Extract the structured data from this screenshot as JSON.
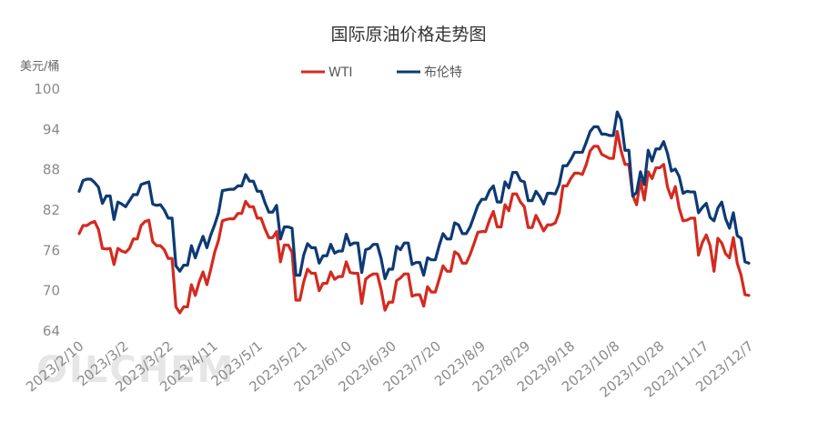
{
  "watermark": "OILCHEM",
  "chart_data": {
    "type": "line",
    "title": "国际原油价格走势图",
    "ylabel": "美元/桶",
    "xlabel": "",
    "ylim": [
      64,
      100
    ],
    "yticks": [
      64,
      70,
      76,
      82,
      88,
      94,
      100
    ],
    "xticks": [
      "2023/2/10",
      "2023/3/2",
      "2023/3/22",
      "2023/4/11",
      "2023/5/1",
      "2023/5/21",
      "2023/6/10",
      "2023/6/30",
      "2023/7/20",
      "2023/8/9",
      "2023/8/29",
      "2023/9/18",
      "2023/10/8",
      "2023/10/28",
      "2023/11/17",
      "2023/12/7"
    ],
    "x_start": "2023/2/10",
    "x_end": "2023/12/7",
    "legend_position": "top-center",
    "grid": false,
    "series": [
      {
        "name": "WTI",
        "color": "#d42a20",
        "x": [
          "2023/2/10",
          "2023/2/13",
          "2023/2/15",
          "2023/2/17",
          "2023/2/20",
          "2023/2/22",
          "2023/2/24",
          "2023/2/27",
          "2023/3/1",
          "2023/3/3",
          "2023/3/6",
          "2023/3/8",
          "2023/3/10",
          "2023/3/13",
          "2023/3/15",
          "2023/3/17",
          "2023/3/20",
          "2023/3/22",
          "2023/3/24",
          "2023/3/27",
          "2023/3/29",
          "2023/3/31",
          "2023/4/3",
          "2023/4/5",
          "2023/4/7",
          "2023/4/10",
          "2023/4/12",
          "2023/4/14",
          "2023/4/17",
          "2023/4/19",
          "2023/4/21",
          "2023/4/24",
          "2023/4/26",
          "2023/4/28",
          "2023/5/1",
          "2023/5/3",
          "2023/5/5",
          "2023/5/8",
          "2023/5/10",
          "2023/5/12",
          "2023/5/15",
          "2023/5/17",
          "2023/5/19",
          "2023/5/22",
          "2023/5/24",
          "2023/5/26",
          "2023/5/29",
          "2023/5/31",
          "2023/6/2",
          "2023/6/5",
          "2023/6/7",
          "2023/6/9",
          "2023/6/12",
          "2023/6/14",
          "2023/6/16",
          "2023/6/19",
          "2023/6/21",
          "2023/6/23",
          "2023/6/26",
          "2023/6/28",
          "2023/6/30",
          "2023/7/3",
          "2023/7/5",
          "2023/7/7",
          "2023/7/10",
          "2023/7/12",
          "2023/7/14",
          "2023/7/17",
          "2023/7/19",
          "2023/7/21",
          "2023/7/24",
          "2023/7/26",
          "2023/7/28",
          "2023/7/31",
          "2023/8/2",
          "2023/8/4",
          "2023/8/7",
          "2023/8/9",
          "2023/8/11",
          "2023/8/14",
          "2023/8/16",
          "2023/8/18",
          "2023/8/21",
          "2023/8/23",
          "2023/8/25",
          "2023/8/28",
          "2023/8/30",
          "2023/9/1",
          "2023/9/4",
          "2023/9/6",
          "2023/9/8",
          "2023/9/11",
          "2023/9/13",
          "2023/9/15",
          "2023/9/18",
          "2023/9/20",
          "2023/9/22",
          "2023/9/25",
          "2023/9/27",
          "2023/9/29",
          "2023/10/2",
          "2023/10/4",
          "2023/10/6",
          "2023/10/9",
          "2023/10/11",
          "2023/10/13",
          "2023/10/16",
          "2023/10/18",
          "2023/10/20",
          "2023/10/23",
          "2023/10/25",
          "2023/10/27",
          "2023/10/30",
          "2023/11/1",
          "2023/11/3",
          "2023/11/6",
          "2023/11/8",
          "2023/11/10",
          "2023/11/13",
          "2023/11/15",
          "2023/11/17",
          "2023/11/20",
          "2023/11/22",
          "2023/11/24",
          "2023/11/27",
          "2023/11/29",
          "2023/12/1",
          "2023/12/4",
          "2023/12/6",
          "2023/12/7"
        ],
        "y": [
          78.5,
          79.7,
          79.1,
          76.3,
          76.2,
          73.9,
          76.3,
          75.7,
          77.7,
          79.7,
          80.5,
          76.7,
          76.7,
          74.8,
          67.6,
          66.7,
          67.6,
          70.9,
          69.3,
          72.8,
          73.2,
          75.7,
          80.4,
          80.6,
          80.7,
          81.5,
          83.3,
          82.5,
          80.8,
          79.2,
          77.9,
          78.8,
          74.3,
          76.8,
          75.7,
          68.6,
          71.3,
          73.2,
          72.6,
          70.0,
          71.1,
          72.8,
          71.7,
          72.1,
          74.3,
          72.7,
          72.6,
          68.1,
          71.7,
          72.2,
          72.5,
          70.2,
          67.1,
          68.3,
          71.5,
          71.9,
          72.5,
          69.2,
          69.4,
          67.7,
          70.6,
          69.8,
          71.7,
          73.7,
          72.9,
          75.8,
          75.4,
          74.1,
          75.4,
          77.0,
          78.7,
          78.8,
          80.5,
          81.8,
          79.5,
          82.8,
          81.9,
          84.4,
          83.2,
          82.5,
          79.4,
          81.2,
          80.1,
          78.9,
          79.8,
          80.1,
          81.6,
          85.6,
          86.7,
          87.5,
          87.5,
          87.3,
          88.8,
          90.8,
          91.5,
          90.3,
          90.0,
          89.7,
          93.7,
          90.8,
          88.8,
          84.2,
          82.8,
          86.4,
          83.5,
          87.7,
          86.7,
          88.3,
          88.8,
          85.4,
          83.8,
          85.5,
          82.3,
          80.4,
          80.5,
          80.8,
          75.3,
          77.2,
          78.3,
          76.7,
          75.9,
          77.8,
          77.1,
          75.5,
          74.9,
          77.9,
          74.1,
          72.3,
          69.4,
          69.3
        ],
        "draw": [
          78.5,
          79.7,
          79.7,
          80.1,
          80.3,
          79.1,
          76.3,
          76.2,
          76.3,
          73.9,
          76.3,
          75.9,
          75.7,
          76.3,
          77.7,
          77.7,
          79.7,
          80.3,
          80.5,
          77.3,
          76.7,
          76.7,
          76.1,
          74.8,
          74.8,
          67.6,
          66.7,
          67.6,
          67.6,
          70.9,
          69.3,
          71.3,
          72.8,
          70.9,
          73.2,
          75.7,
          77.5,
          80.4,
          80.6,
          80.7,
          80.7,
          81.5,
          81.5,
          83.3,
          82.5,
          82.5,
          80.8,
          80.8,
          79.2,
          77.9,
          77.9,
          78.8,
          74.3,
          76.8,
          76.8,
          75.7,
          68.6,
          68.6,
          71.3,
          73.2,
          72.6,
          72.6,
          70.0,
          71.1,
          71.1,
          72.8,
          71.7,
          72.1,
          72.1,
          74.3,
          72.7,
          72.6,
          72.6,
          68.1,
          71.7,
          72.2,
          72.5,
          72.5,
          70.2,
          67.1,
          68.3,
          68.3,
          71.5,
          71.9,
          72.5,
          72.5,
          69.2,
          69.4,
          69.4,
          67.7,
          70.6,
          69.8,
          69.8,
          71.7,
          73.7,
          72.9,
          72.9,
          75.8,
          75.4,
          74.1,
          74.1,
          75.4,
          77.0,
          78.7,
          78.8,
          78.8,
          80.5,
          81.8,
          79.5,
          79.5,
          82.8,
          81.9,
          84.4,
          84.4,
          83.2,
          82.5,
          79.4,
          79.4,
          81.2,
          80.1,
          78.9,
          79.8,
          79.8,
          80.1,
          81.6,
          85.6,
          85.6,
          86.7,
          87.5,
          87.5,
          87.3,
          88.8,
          90.8,
          91.5,
          91.5,
          90.3,
          90.0,
          89.7,
          89.7,
          93.7,
          90.8,
          88.8,
          88.8,
          84.2,
          82.8,
          86.4,
          83.5,
          87.7,
          86.7,
          88.3,
          88.3,
          88.8,
          85.4,
          83.8,
          85.5,
          82.3,
          80.4,
          80.5,
          80.8,
          80.8,
          75.3,
          77.2,
          78.3,
          76.7,
          72.9,
          77.8,
          77.1,
          75.5,
          74.9,
          77.9,
          74.1,
          72.3,
          69.4,
          69.3
        ]
      },
      {
        "name": "布伦特",
        "color": "#0d3a75",
        "x": [
          "2023/2/10",
          "2023/2/13",
          "2023/2/15",
          "2023/2/17",
          "2023/2/20",
          "2023/2/22",
          "2023/2/24",
          "2023/2/27",
          "2023/3/1",
          "2023/3/3",
          "2023/3/6",
          "2023/3/8",
          "2023/3/10",
          "2023/3/13",
          "2023/3/15",
          "2023/3/17",
          "2023/3/20",
          "2023/3/22",
          "2023/3/24",
          "2023/3/27",
          "2023/3/29",
          "2023/3/31",
          "2023/4/3",
          "2023/4/5",
          "2023/4/7",
          "2023/4/10",
          "2023/4/12",
          "2023/4/14",
          "2023/4/17",
          "2023/4/19",
          "2023/4/21",
          "2023/4/24",
          "2023/4/26",
          "2023/4/28",
          "2023/5/1",
          "2023/5/3",
          "2023/5/5",
          "2023/5/8",
          "2023/5/10",
          "2023/5/12",
          "2023/5/15",
          "2023/5/17",
          "2023/5/19",
          "2023/5/22",
          "2023/5/24",
          "2023/5/26",
          "2023/5/29",
          "2023/5/31",
          "2023/6/2",
          "2023/6/5",
          "2023/6/7",
          "2023/6/9",
          "2023/6/12",
          "2023/6/14",
          "2023/6/16",
          "2023/6/19",
          "2023/6/21",
          "2023/6/23",
          "2023/6/26",
          "2023/6/28",
          "2023/6/30",
          "2023/7/3",
          "2023/7/5",
          "2023/7/7",
          "2023/7/10",
          "2023/7/12",
          "2023/7/14",
          "2023/7/17",
          "2023/7/19",
          "2023/7/21",
          "2023/7/24",
          "2023/7/26",
          "2023/7/28",
          "2023/7/31",
          "2023/8/2",
          "2023/8/4",
          "2023/8/7",
          "2023/8/9",
          "2023/8/11",
          "2023/8/14",
          "2023/8/16",
          "2023/8/18",
          "2023/8/21",
          "2023/8/23",
          "2023/8/25",
          "2023/8/28",
          "2023/8/30",
          "2023/9/1",
          "2023/9/4",
          "2023/9/6",
          "2023/9/8",
          "2023/9/11",
          "2023/9/13",
          "2023/9/15",
          "2023/9/18",
          "2023/9/20",
          "2023/9/22",
          "2023/9/25",
          "2023/9/27",
          "2023/9/29",
          "2023/10/2",
          "2023/10/4",
          "2023/10/6",
          "2023/10/9",
          "2023/10/11",
          "2023/10/13",
          "2023/10/16",
          "2023/10/18",
          "2023/10/20",
          "2023/10/23",
          "2023/10/25",
          "2023/10/27",
          "2023/10/30",
          "2023/11/1",
          "2023/11/3",
          "2023/11/6",
          "2023/11/8",
          "2023/11/10",
          "2023/11/13",
          "2023/11/15",
          "2023/11/17",
          "2023/11/20",
          "2023/11/22",
          "2023/11/24",
          "2023/11/27",
          "2023/11/29",
          "2023/12/1",
          "2023/12/4",
          "2023/12/6",
          "2023/12/7"
        ],
        "y": [
          86.4,
          86.6,
          85.4,
          83.0,
          84.1,
          80.6,
          83.2,
          82.5,
          84.3,
          85.8,
          86.2,
          82.7,
          82.8,
          80.8,
          73.7,
          72.9,
          73.8,
          76.7,
          74.9,
          78.1,
          78.3,
          79.8,
          84.9,
          85.0,
          85.1,
          85.6,
          87.3,
          86.3,
          84.8,
          83.1,
          81.7,
          82.7,
          77.7,
          79.5,
          79.3,
          72.3,
          75.3,
          77.0,
          76.4,
          74.1,
          75.2,
          76.9,
          75.6,
          75.9,
          78.4,
          76.8,
          77.1,
          72.7,
          76.1,
          76.3,
          76.9,
          74.8,
          71.8,
          73.2,
          76.6,
          76.1,
          77.1,
          73.9,
          74.2,
          72.3,
          74.9,
          74.6,
          76.7,
          78.5,
          77.7,
          80.1,
          79.8,
          78.5,
          79.5,
          81.1,
          82.7,
          83.6,
          84.9,
          85.6,
          83.2,
          86.2,
          85.3,
          87.6,
          86.4,
          86.2,
          83.4,
          84.8,
          84.0,
          82.9,
          84.5,
          84.4,
          85.8,
          88.6,
          89.5,
          90.6,
          90.6,
          90.6,
          92.1,
          93.7,
          94.4,
          93.3,
          93.3,
          93.1,
          96.6,
          95.4,
          90.9,
          84.1,
          84.6,
          87.7,
          85.8,
          90.9,
          89.3,
          91.1,
          92.2,
          90.4,
          87.8,
          88.1,
          87.0,
          84.5,
          84.8,
          84.7,
          81.6,
          82.4,
          83.0,
          80.9,
          80.4,
          82.3,
          83.2,
          80.7,
          79.3,
          81.6,
          78.2,
          77.8,
          74.3,
          74.1
        ],
        "draw": [
          84.8,
          86.4,
          86.6,
          86.6,
          86.1,
          85.4,
          83.0,
          84.1,
          84.1,
          80.6,
          83.2,
          82.9,
          82.5,
          83.4,
          84.3,
          84.3,
          85.8,
          86.0,
          86.2,
          82.9,
          82.7,
          82.8,
          82.0,
          80.8,
          80.8,
          73.7,
          72.9,
          73.8,
          73.8,
          76.7,
          74.9,
          76.6,
          78.1,
          76.4,
          78.3,
          79.8,
          81.6,
          84.9,
          85.0,
          85.1,
          85.1,
          85.6,
          85.6,
          87.3,
          86.3,
          86.3,
          84.8,
          84.8,
          83.1,
          81.7,
          81.7,
          82.7,
          77.7,
          79.5,
          79.5,
          79.3,
          72.3,
          72.3,
          75.3,
          77.0,
          76.4,
          76.4,
          74.1,
          75.2,
          75.2,
          76.9,
          75.6,
          75.9,
          75.9,
          78.4,
          76.8,
          77.1,
          77.1,
          72.7,
          76.1,
          76.3,
          76.9,
          76.9,
          74.8,
          71.8,
          73.2,
          73.2,
          76.6,
          76.1,
          77.1,
          77.1,
          73.9,
          74.2,
          74.2,
          72.3,
          74.9,
          74.6,
          74.6,
          76.7,
          78.5,
          77.7,
          77.7,
          80.1,
          79.8,
          78.5,
          78.5,
          79.5,
          81.1,
          82.7,
          83.6,
          83.6,
          84.9,
          85.6,
          83.2,
          83.2,
          86.2,
          85.3,
          87.6,
          87.6,
          86.4,
          86.2,
          83.4,
          83.4,
          84.8,
          84.0,
          82.9,
          84.5,
          84.5,
          84.4,
          85.8,
          88.6,
          88.6,
          89.5,
          90.6,
          90.6,
          90.6,
          92.1,
          93.7,
          94.4,
          94.4,
          93.3,
          93.3,
          93.1,
          93.1,
          96.6,
          95.4,
          90.9,
          90.9,
          84.1,
          84.6,
          87.7,
          85.8,
          90.9,
          89.3,
          91.1,
          91.1,
          92.2,
          90.4,
          87.8,
          88.1,
          87.0,
          84.5,
          84.8,
          84.7,
          84.7,
          81.6,
          82.4,
          83.0,
          80.9,
          80.4,
          82.3,
          83.2,
          80.7,
          79.3,
          81.6,
          78.2,
          77.8,
          74.3,
          74.1
        ]
      }
    ]
  }
}
